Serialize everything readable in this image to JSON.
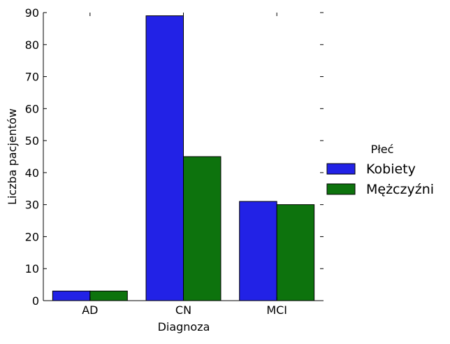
{
  "chart_data": {
    "type": "bar",
    "title": "",
    "xlabel": "Diagnoza",
    "ylabel": "Liczba pacjentów",
    "categories": [
      "AD",
      "CN",
      "MCI"
    ],
    "series": [
      {
        "name": "Kobiety",
        "values": [
          3,
          89,
          31
        ],
        "color": "#2222e6"
      },
      {
        "name": "Mężczyźni",
        "values": [
          3,
          45,
          30
        ],
        "color": "#0d730d"
      }
    ],
    "ylim": [
      0,
      90
    ],
    "yticks": [
      "0",
      "10",
      "20",
      "30",
      "40",
      "50",
      "60",
      "70",
      "80",
      "90"
    ],
    "grid": false,
    "legend": {
      "title": "Płeć",
      "placement": "right"
    }
  }
}
